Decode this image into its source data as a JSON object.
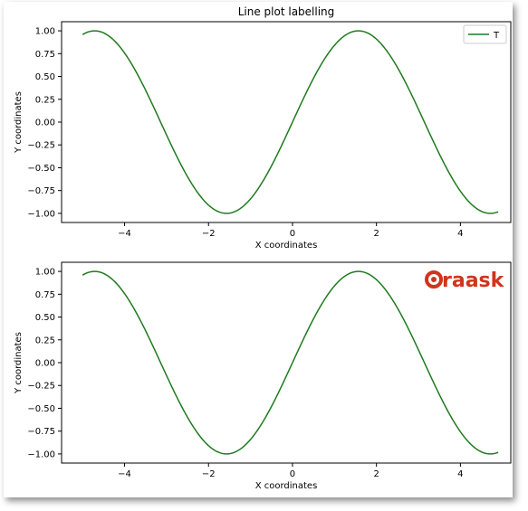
{
  "colors": {
    "line": "#1f7a1f",
    "frame": "#000000",
    "logo": "#d0341c"
  },
  "logo": {
    "text": "raask"
  },
  "chart_data": [
    {
      "type": "line",
      "title": "Line plot labelling",
      "xlabel": "X coordinates",
      "ylabel": "Y coordinates",
      "xlim": [
        -5.5,
        5.2
      ],
      "ylim": [
        -1.1,
        1.1
      ],
      "xticks": [
        -4,
        -2,
        0,
        2,
        4
      ],
      "xtick_labels": [
        "−4",
        "−2",
        "0",
        "2",
        "4"
      ],
      "yticks": [
        1.0,
        0.75,
        0.5,
        0.25,
        0.0,
        -0.25,
        -0.5,
        -0.75,
        -1.0
      ],
      "ytick_labels": [
        "1.00",
        "0.75",
        "0.50",
        "0.25",
        "0.00",
        "−0.25",
        "−0.50",
        "−0.75",
        "−1.00"
      ],
      "legend": "top-right",
      "grid": false,
      "series": [
        {
          "name": "T",
          "function": "sin(x)",
          "x_start": -5,
          "x_end": 4.9,
          "x_step": 0.1
        }
      ]
    },
    {
      "type": "line",
      "title": "",
      "xlabel": "X coordinates",
      "ylabel": "Y coordinates",
      "xlim": [
        -5.5,
        5.2
      ],
      "ylim": [
        -1.1,
        1.1
      ],
      "xticks": [
        -4,
        -2,
        0,
        2,
        4
      ],
      "xtick_labels": [
        "−4",
        "−2",
        "0",
        "2",
        "4"
      ],
      "yticks": [
        1.0,
        0.75,
        0.5,
        0.25,
        0.0,
        -0.25,
        -0.5,
        -0.75,
        -1.0
      ],
      "ytick_labels": [
        "1.00",
        "0.75",
        "0.50",
        "0.25",
        "0.00",
        "−0.25",
        "−0.50",
        "−0.75",
        "−1.00"
      ],
      "grid": false,
      "series": [
        {
          "function": "sin(x)",
          "x_start": -5,
          "x_end": 4.9,
          "x_step": 0.1
        }
      ]
    }
  ]
}
